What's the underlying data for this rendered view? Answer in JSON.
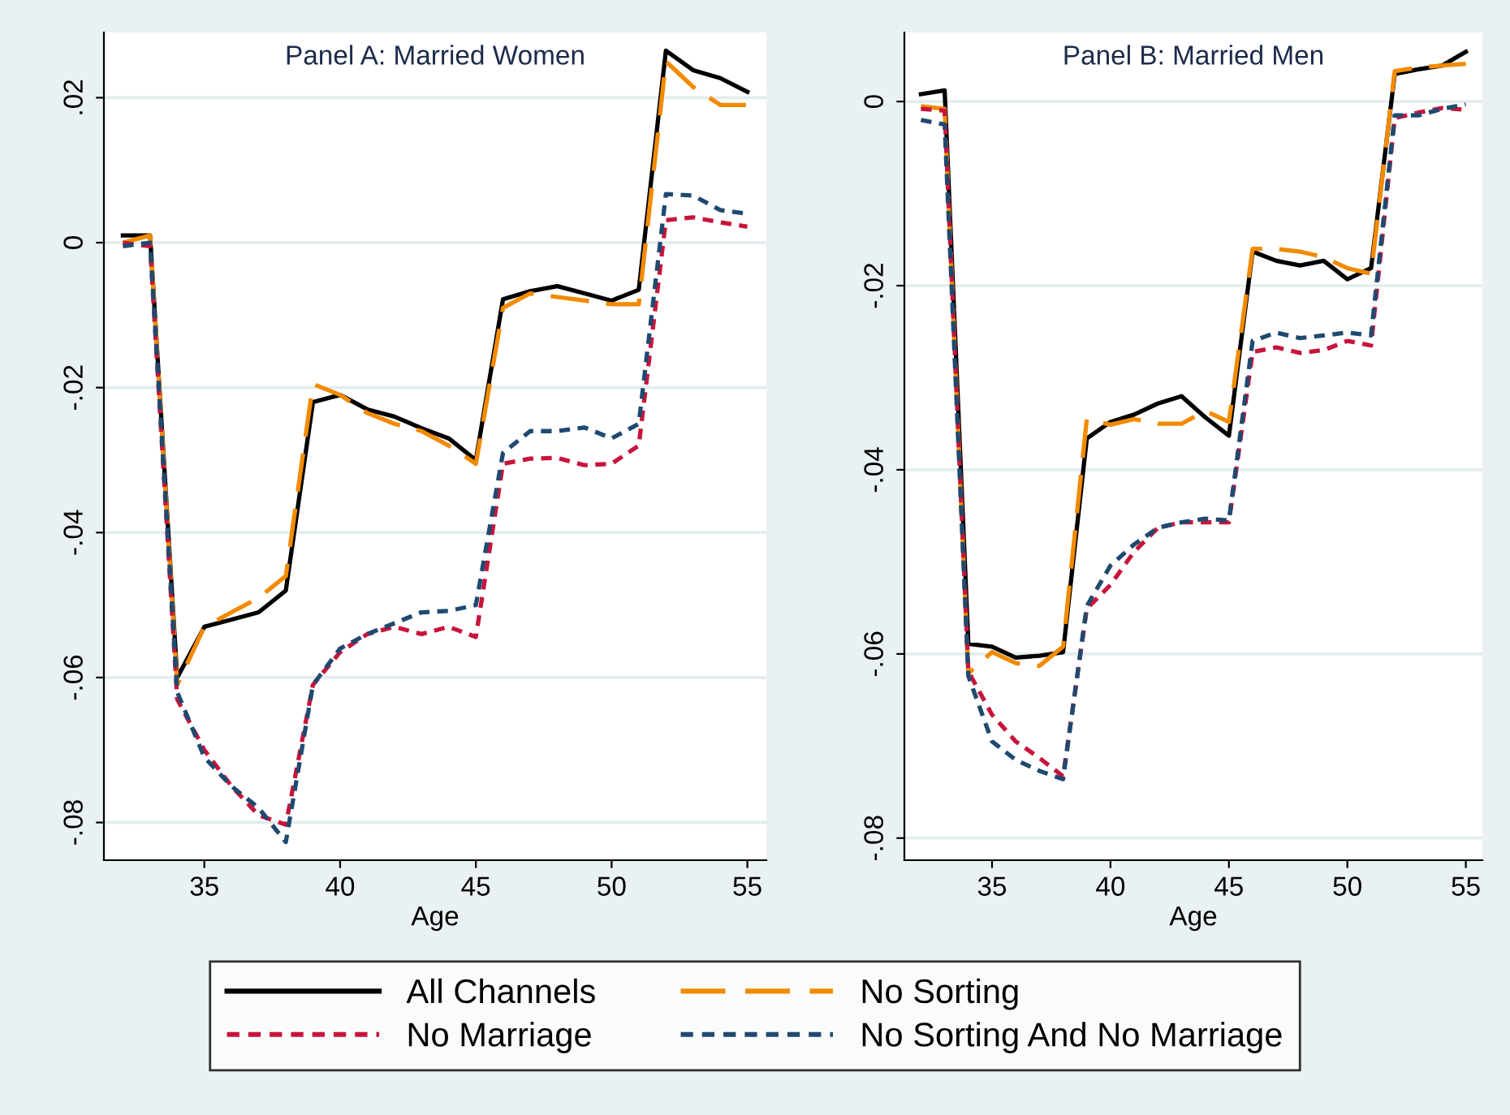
{
  "chart_data": [
    {
      "type": "line",
      "title": "Panel A: Married Women",
      "xlabel": "Age",
      "x": [
        32,
        33,
        34,
        35,
        36,
        37,
        38,
        39,
        40,
        41,
        42,
        43,
        44,
        45,
        46,
        47,
        48,
        49,
        50,
        51,
        52,
        53,
        54,
        55
      ],
      "xlim": [
        31.3,
        55.7
      ],
      "xticks": [
        35,
        40,
        45,
        50,
        55
      ],
      "ylim": [
        -0.0852,
        0.029
      ],
      "yticks": [
        {
          "value": 0.02,
          "label": ".02"
        },
        {
          "value": 0,
          "label": "0"
        },
        {
          "value": -0.02,
          "label": "-.02"
        },
        {
          "value": -0.04,
          "label": "-.04"
        },
        {
          "value": -0.06,
          "label": "-.06"
        },
        {
          "value": -0.08,
          "label": "-.08"
        }
      ],
      "grid": "y",
      "legend": "bottom",
      "series": [
        {
          "name": "All Channels",
          "color": "#000000",
          "line_style": "solid",
          "values": [
            0.001,
            0.001,
            -0.06,
            -0.053,
            -0.052,
            -0.051,
            -0.048,
            -0.022,
            -0.021,
            -0.023,
            -0.024,
            -0.0256,
            -0.027,
            -0.03,
            -0.0078,
            -0.0067,
            -0.006,
            -0.007,
            -0.008,
            -0.0065,
            0.0265,
            0.0238,
            0.0227,
            0.0208
          ]
        },
        {
          "name": "No Sorting",
          "color": "#f28a00",
          "line_style": "dashed",
          "values": [
            0,
            0.001,
            -0.061,
            -0.053,
            -0.051,
            -0.049,
            -0.046,
            -0.0195,
            -0.021,
            -0.0235,
            -0.025,
            -0.026,
            -0.028,
            -0.0305,
            -0.009,
            -0.007,
            -0.0075,
            -0.008,
            -0.0085,
            -0.0085,
            0.025,
            0.0215,
            0.019,
            0.019
          ]
        },
        {
          "name": "No Marriage",
          "color": "#c8143c",
          "line_style": "dotted",
          "values": [
            0,
            -0.0005,
            -0.063,
            -0.07,
            -0.075,
            -0.079,
            -0.0803,
            -0.061,
            -0.0565,
            -0.054,
            -0.053,
            -0.054,
            -0.053,
            -0.0544,
            -0.0305,
            -0.0298,
            -0.0297,
            -0.0307,
            -0.0305,
            -0.028,
            0.0031,
            0.0035,
            0.0028,
            0.0022
          ]
        },
        {
          "name": "No Sorting And No Marriage",
          "color": "#1f4a70",
          "line_style": "dotted",
          "values": [
            -0.0005,
            0,
            -0.062,
            -0.071,
            -0.075,
            -0.078,
            -0.0827,
            -0.061,
            -0.056,
            -0.054,
            -0.0525,
            -0.051,
            -0.0508,
            -0.05,
            -0.029,
            -0.026,
            -0.026,
            -0.0255,
            -0.027,
            -0.025,
            0.0067,
            0.0065,
            0.0045,
            0.004
          ]
        }
      ]
    },
    {
      "type": "line",
      "title": "Panel B: Married Men",
      "xlabel": "Age",
      "x": [
        32,
        33,
        34,
        35,
        36,
        37,
        38,
        39,
        40,
        41,
        42,
        43,
        44,
        45,
        46,
        47,
        48,
        49,
        50,
        51,
        52,
        53,
        54,
        55
      ],
      "xlim": [
        31.3,
        55.7
      ],
      "xticks": [
        35,
        40,
        45,
        50,
        55
      ],
      "ylim": [
        -0.0824,
        0.0075
      ],
      "yticks": [
        {
          "value": 0,
          "label": "0"
        },
        {
          "value": -0.02,
          "label": "-.02"
        },
        {
          "value": -0.04,
          "label": "-.04"
        },
        {
          "value": -0.06,
          "label": "-.06"
        },
        {
          "value": -0.08,
          "label": "-.08"
        }
      ],
      "grid": "y",
      "series": [
        {
          "name": "All Channels",
          "color": "#000000",
          "line_style": "solid",
          "values": [
            0.0008,
            0.0012,
            -0.0589,
            -0.0592,
            -0.0604,
            -0.0602,
            -0.0598,
            -0.0366,
            -0.0348,
            -0.034,
            -0.0328,
            -0.032,
            -0.0343,
            -0.0363,
            -0.0163,
            -0.0173,
            -0.0178,
            -0.0173,
            -0.0193,
            -0.0181,
            0.003,
            0.0035,
            0.0039,
            0.0054
          ]
        },
        {
          "name": "No Sorting",
          "color": "#f28a00",
          "line_style": "dashed",
          "values": [
            -0.0005,
            -0.0008,
            -0.0621,
            -0.0598,
            -0.061,
            -0.0613,
            -0.0592,
            -0.0345,
            -0.0351,
            -0.0345,
            -0.035,
            -0.035,
            -0.0336,
            -0.0348,
            -0.016,
            -0.016,
            -0.0163,
            -0.0169,
            -0.0181,
            -0.0187,
            0.0033,
            0.0037,
            0.0039,
            0.0041
          ]
        },
        {
          "name": "No Marriage",
          "color": "#c8143c",
          "line_style": "dotted",
          "values": [
            -0.0008,
            -0.001,
            -0.0619,
            -0.0666,
            -0.0695,
            -0.0713,
            -0.0733,
            -0.0551,
            -0.0525,
            -0.0489,
            -0.0463,
            -0.0457,
            -0.0457,
            -0.0457,
            -0.0272,
            -0.0267,
            -0.0273,
            -0.027,
            -0.026,
            -0.0265,
            -0.0018,
            -0.0012,
            -0.0007,
            -0.0009
          ]
        },
        {
          "name": "No Sorting And No Marriage",
          "color": "#1f4a70",
          "line_style": "dotted",
          "values": [
            -0.002,
            -0.0025,
            -0.0624,
            -0.0695,
            -0.0715,
            -0.0727,
            -0.0736,
            -0.0548,
            -0.0504,
            -0.0481,
            -0.0463,
            -0.0457,
            -0.0453,
            -0.0455,
            -0.026,
            -0.0251,
            -0.0257,
            -0.0254,
            -0.0251,
            -0.0254,
            -0.0015,
            -0.0015,
            -0.0008,
            -0.0003
          ]
        }
      ]
    }
  ]
}
